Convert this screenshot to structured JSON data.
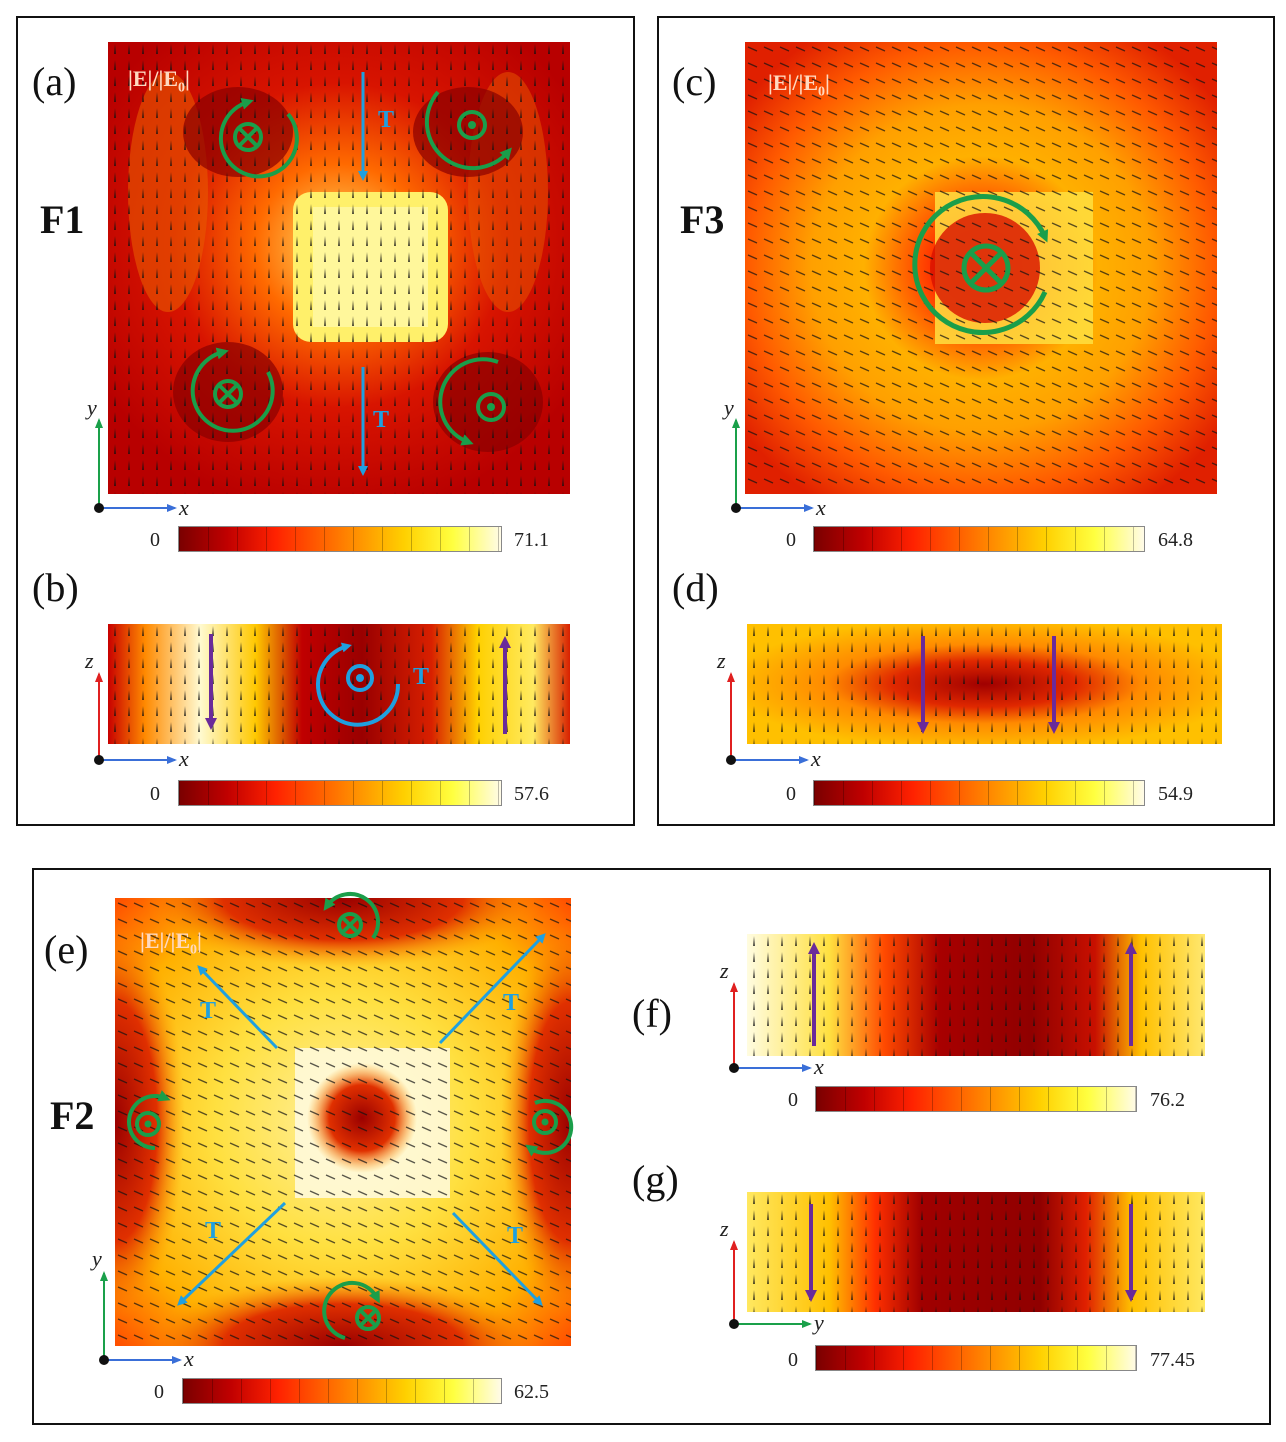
{
  "panels": {
    "a": {
      "label": "(a)",
      "mode": "F1",
      "field_label": "|E|/|E",
      "field_sub": "0",
      "field_tail": "|"
    },
    "b": {
      "label": "(b)"
    },
    "c": {
      "label": "(c)",
      "mode": "F3",
      "field_label": "|E|/|E",
      "field_sub": "0",
      "field_tail": "|"
    },
    "d": {
      "label": "(d)"
    },
    "e": {
      "label": "(e)",
      "mode": "F2",
      "field_label": "|E|/|E",
      "field_sub": "0",
      "field_tail": "|"
    },
    "f": {
      "label": "(f)"
    },
    "g": {
      "label": "(g)"
    }
  },
  "colorbars": {
    "a": {
      "min": "0",
      "max": "71.1"
    },
    "b": {
      "min": "0",
      "max": "57.6"
    },
    "c": {
      "min": "0",
      "max": "64.8"
    },
    "d": {
      "min": "0",
      "max": "54.9"
    },
    "e": {
      "min": "0",
      "max": "62.5"
    },
    "f": {
      "min": "0",
      "max": "76.2"
    },
    "g": {
      "min": "0",
      "max": "77.45"
    }
  },
  "axes": {
    "x": "x",
    "y": "y",
    "z": "z"
  },
  "annotations": {
    "toroidal": "T"
  },
  "colors": {
    "toroidal_arrow": "#1fa0e0",
    "vortex": "#1a9e4a",
    "dipole_arrow": "#6a2a9a",
    "axis_x": "#3a6fd8",
    "axis_y": "#1aa04a",
    "axis_z": "#e02020"
  },
  "icons": {
    "into_page": "circled-cross-icon",
    "out_of_page": "circled-dot-icon"
  }
}
